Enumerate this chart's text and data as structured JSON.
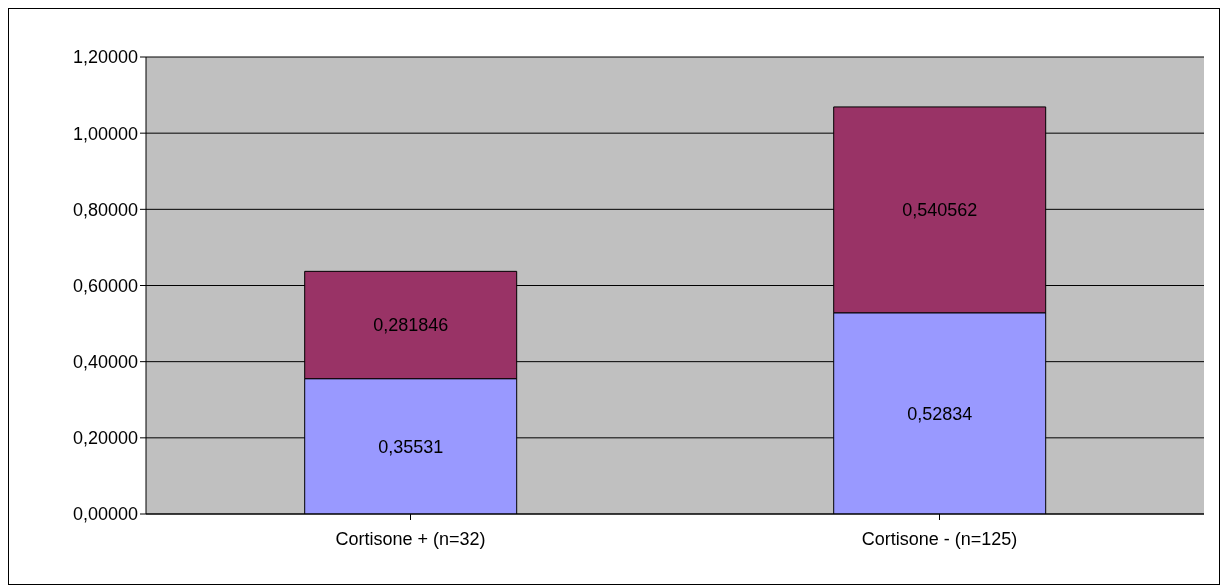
{
  "chart_data": {
    "type": "bar",
    "stacked": true,
    "categories": [
      "Cortisone + (n=32)",
      "Cortisone - (n=125)"
    ],
    "series": [
      {
        "color": "#9999ff",
        "values": [
          0.35531,
          0.52834
        ],
        "value_labels": [
          "0,35531",
          "0,52834"
        ]
      },
      {
        "color": "#993366",
        "values": [
          0.281846,
          0.540562
        ],
        "value_labels": [
          "0,281846",
          "0,540562"
        ]
      }
    ],
    "ylim": [
      0,
      1.2
    ],
    "yticks": [
      {
        "value": 0,
        "label": "0,00000"
      },
      {
        "value": 0.2,
        "label": "0,20000"
      },
      {
        "value": 0.4,
        "label": "0,40000"
      },
      {
        "value": 0.6,
        "label": "0,60000"
      },
      {
        "value": 0.8,
        "label": "0,80000"
      },
      {
        "value": 1,
        "label": "1,00000"
      },
      {
        "value": 1.2,
        "label": "1,20000"
      }
    ],
    "grid": "y"
  }
}
